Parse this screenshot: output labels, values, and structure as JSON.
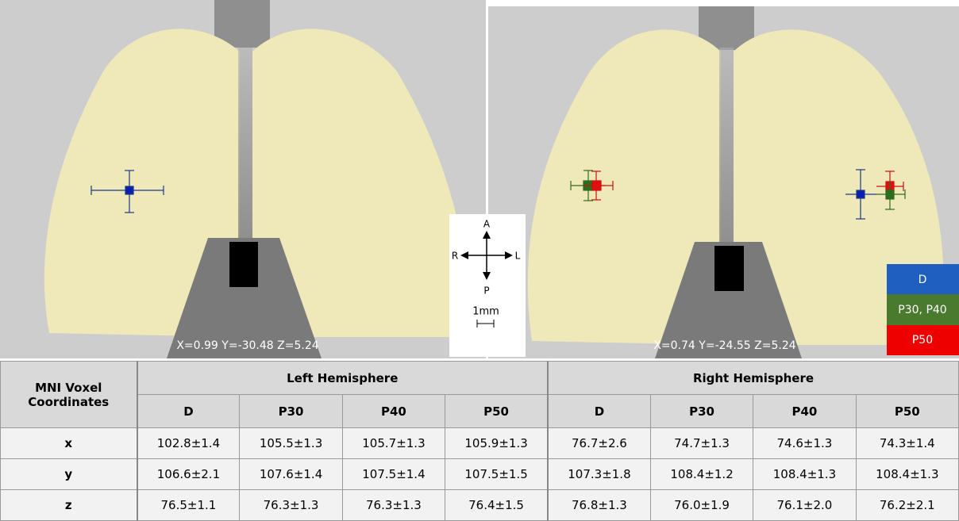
{
  "left_image": {
    "coordinates": "X=0.99 Y=-30.48 Z=5.24"
  },
  "right_image": {
    "coordinates": "X=0.74 Y=-24.55 Z=5.24"
  },
  "orientation": {
    "anterior": "A",
    "posterior": "P",
    "right": "R",
    "left": "L",
    "scale": "1mm"
  },
  "legend": [
    "D",
    "P30, P40",
    "P50"
  ],
  "table": {
    "corner": "MNI Voxel Coordinates",
    "groups": [
      "Left Hemisphere",
      "Right Hemisphere"
    ],
    "columns": [
      "D",
      "P30",
      "P40",
      "P50",
      "D",
      "P30",
      "P40",
      "P50"
    ],
    "rows": [
      [
        "x",
        "102.8±1.4",
        "105.5±1.3",
        "105.7±1.3",
        "105.9±1.3",
        "76.7±2.6",
        "74.7±1.3",
        "74.6±1.3",
        "74.3±1.4"
      ],
      [
        "y",
        "106.6±2.1",
        "107.6±1.4",
        "107.5±1.4",
        "107.5±1.5",
        "107.3±1.8",
        "108.4±1.2",
        "108.4±1.3",
        "108.4±1.3"
      ],
      [
        "z",
        "76.5±1.1",
        "76.3±1.3",
        "76.3±1.3",
        "76.4±1.5",
        "76.8±1.3",
        "76.0±1.9",
        "76.1±2.0",
        "76.2±2.1"
      ]
    ]
  }
}
